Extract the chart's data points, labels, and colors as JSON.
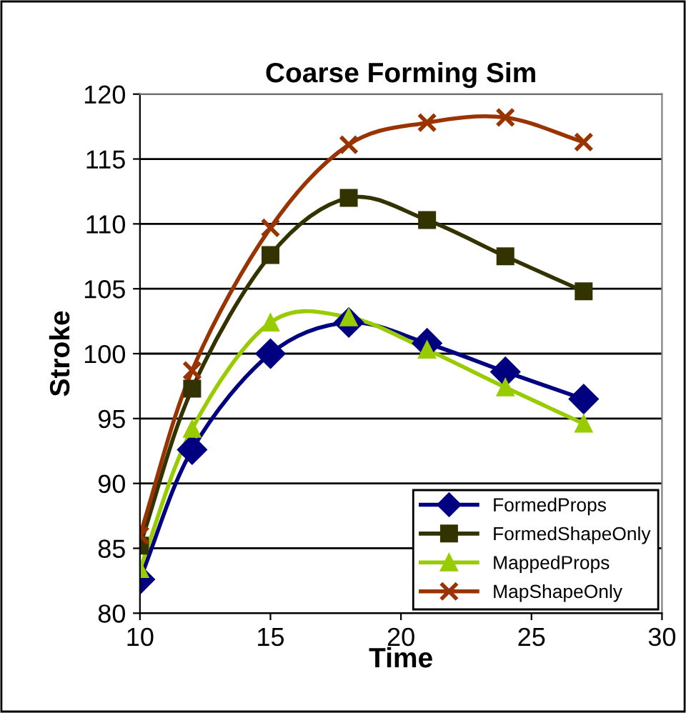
{
  "chart_data": {
    "type": "line",
    "title": "Coarse Forming Sim",
    "xlabel": "Time",
    "ylabel": "Stroke",
    "x": [
      10,
      12,
      15,
      18,
      21,
      24,
      27
    ],
    "series": [
      {
        "name": "FormedProps",
        "color": "#000080",
        "marker": "diamond",
        "values": [
          82.6,
          92.6,
          100.0,
          102.4,
          100.8,
          98.6,
          96.5
        ]
      },
      {
        "name": "FormedShapeOnly",
        "color": "#333300",
        "marker": "square",
        "values": [
          85.2,
          97.3,
          107.6,
          112.0,
          110.3,
          107.5,
          104.8
        ]
      },
      {
        "name": "MappedProps",
        "color": "#99cc00",
        "marker": "triangle",
        "values": [
          83.4,
          94.2,
          102.4,
          102.8,
          100.3,
          97.4,
          94.6
        ]
      },
      {
        "name": "MapShapeOnly",
        "color": "#993300",
        "marker": "cross",
        "values": [
          86.0,
          98.7,
          109.7,
          116.1,
          117.8,
          118.2,
          116.3
        ]
      }
    ],
    "xlim": [
      10,
      30
    ],
    "xticks": [
      10,
      15,
      20,
      25,
      30
    ],
    "ylim": [
      80,
      120
    ],
    "yticks": [
      80,
      85,
      90,
      95,
      100,
      105,
      110,
      115,
      120
    ],
    "grid": "y",
    "legend": "bottom right",
    "line_style": "solid"
  }
}
